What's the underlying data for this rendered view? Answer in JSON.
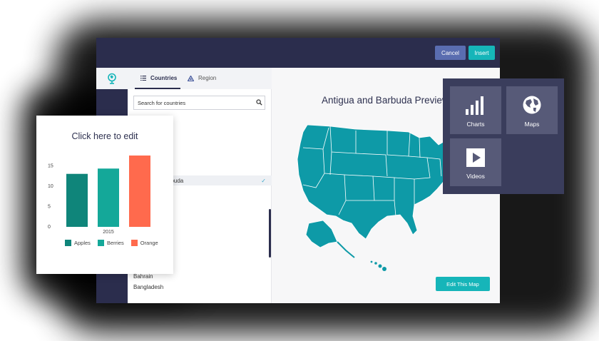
{
  "toolbar": {
    "cancel_label": "Cancel",
    "insert_label": "Insert"
  },
  "tabs": [
    {
      "label": "Countries"
    },
    {
      "label": "Region"
    }
  ],
  "search": {
    "placeholder": "Search for countries"
  },
  "countries": [
    {
      "label": "Barbuda",
      "selected": true
    },
    {
      "label": "Bahrain",
      "selected": false
    },
    {
      "label": "Bangladesh",
      "selected": false
    }
  ],
  "preview": {
    "title": "Antigua and Barbuda Preview",
    "edit_label": "Edit This Map"
  },
  "picker": {
    "charts_label": "Charts",
    "maps_label": "Maps",
    "videos_label": "Videos"
  },
  "colors": {
    "navy": "#2b2d4d",
    "teal": "#16b5b9",
    "map": "#0e9aa7",
    "apples": "#0f857a",
    "berries": "#14a899",
    "orange": "#ff6a4d"
  },
  "chart_card": {
    "title": "Click here to edit"
  },
  "chart_data": {
    "type": "bar",
    "title": "Click here to edit",
    "categories": [
      "2015"
    ],
    "series": [
      {
        "name": "Apples",
        "values": [
          13
        ]
      },
      {
        "name": "Berries",
        "values": [
          14.3
        ]
      },
      {
        "name": "Orange",
        "values": [
          17.5
        ]
      }
    ],
    "yticks": [
      "0",
      "5",
      "10",
      "15"
    ],
    "ylim": [
      0,
      17.5
    ],
    "legend": "bottom",
    "grid": false
  }
}
